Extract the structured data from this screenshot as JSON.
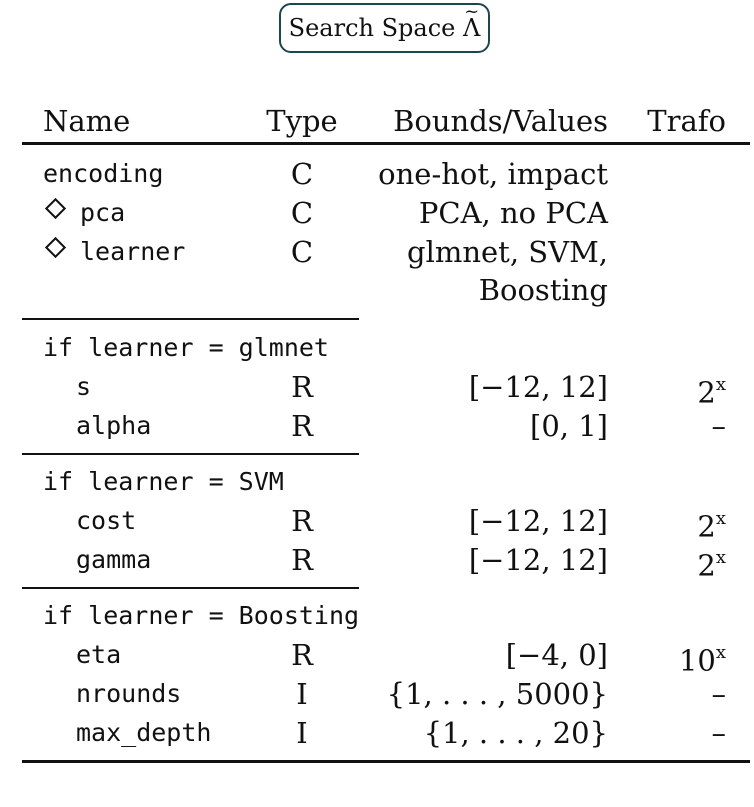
{
  "title": {
    "text": "Search Space",
    "symbol": "Λ",
    "tilde": "~"
  },
  "columns": {
    "name": "Name",
    "type": "Type",
    "bounds": "Bounds/Values",
    "trafo": "Trafo"
  },
  "top": [
    {
      "name": "encoding",
      "type": "C",
      "values": "one-hot, impact",
      "diamond": false
    },
    {
      "name": "pca",
      "type": "C",
      "values": "PCA, no PCA",
      "diamond": true
    },
    {
      "name": "learner",
      "type": "C",
      "values": "glmnet, SVM,",
      "values2": "Boosting",
      "diamond": true
    }
  ],
  "groups": [
    {
      "condition": "if learner = glmnet",
      "rows": [
        {
          "name": "s",
          "type": "R",
          "bounds": "[−12, 12]",
          "trafo_base": "2",
          "trafo_exp": "x"
        },
        {
          "name": "alpha",
          "type": "R",
          "bounds": "[0, 1]",
          "trafo": "–"
        }
      ]
    },
    {
      "condition": "if learner = SVM",
      "rows": [
        {
          "name": "cost",
          "type": "R",
          "bounds": "[−12, 12]",
          "trafo_base": "2",
          "trafo_exp": "x"
        },
        {
          "name": "gamma",
          "type": "R",
          "bounds": "[−12, 12]",
          "trafo_base": "2",
          "trafo_exp": "x"
        }
      ]
    },
    {
      "condition": "if learner = Boosting",
      "rows": [
        {
          "name": "eta",
          "type": "R",
          "bounds": "[−4, 0]",
          "trafo_base": "10",
          "trafo_exp": "x"
        },
        {
          "name": "nrounds",
          "type": "I",
          "bounds": "{1, . . . , 5000}",
          "trafo": "–"
        },
        {
          "name": "max_depth",
          "type": "I",
          "bounds": "{1, . . . , 20}",
          "trafo": "–"
        }
      ]
    }
  ]
}
